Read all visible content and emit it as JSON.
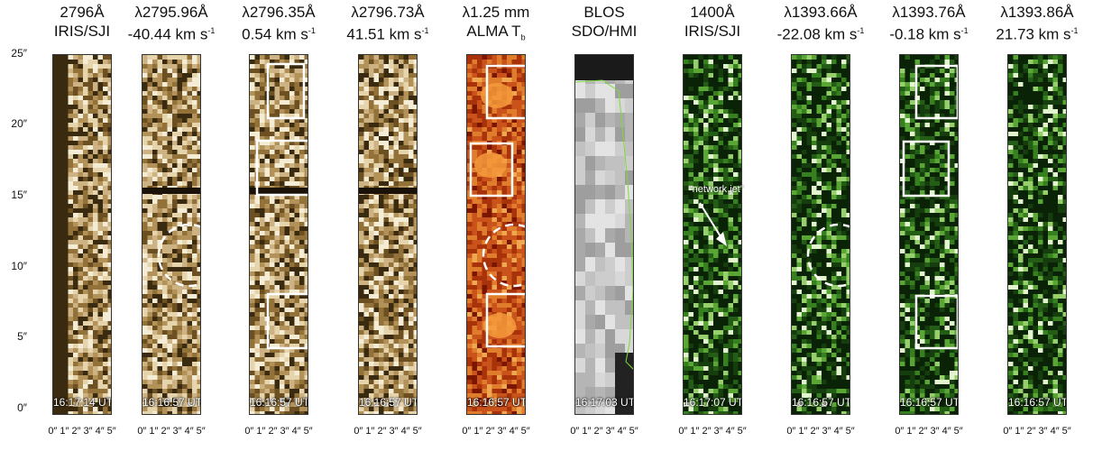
{
  "panels": [
    {
      "title1": "2796Å",
      "title2": "IRIS/SJI",
      "time": "16:17:14 UT",
      "palette": "brown"
    },
    {
      "title1": "λ2795.96Å",
      "title2": "-40.44 km s",
      "title2_sup": "-1",
      "time": "16:16:57 UT",
      "palette": "brown"
    },
    {
      "title1": "λ2796.35Å",
      "title2": "0.54 km s",
      "title2_sup": "-1",
      "time": "16:16:57 UT",
      "palette": "brown"
    },
    {
      "title1": "λ2796.73Å",
      "title2": "41.51 km s",
      "title2_sup": "-1",
      "time": "16:16:57 UT",
      "palette": "brown"
    },
    {
      "title1": "λ1.25 mm",
      "title2": "ALMA T",
      "title2_sub": "b",
      "time": "16:16:57 UT",
      "palette": "red"
    },
    {
      "title1": "BLOS",
      "title2": "SDO/HMI",
      "time": "16:17:03 UT",
      "palette": "gray"
    },
    {
      "title1": "1400Å",
      "title2": "IRIS/SJI",
      "time": "16:17:07 UT",
      "palette": "green"
    },
    {
      "title1": "λ1393.66Å",
      "title2": "-22.08 km s",
      "title2_sup": "-1",
      "time": "16:16:57 UT",
      "palette": "green"
    },
    {
      "title1": "λ1393.76Å",
      "title2": "-0.18 km s",
      "title2_sup": "-1",
      "time": "16:16:57 UT",
      "palette": "green"
    },
    {
      "title1": "λ1393.86Å",
      "title2": "21.73 km s",
      "title2_sup": "-1",
      "time": "16:16:57 UT",
      "palette": "green"
    }
  ],
  "y_axis": {
    "ticks": [
      "25″",
      "20″",
      "15″",
      "10″",
      "5″",
      "0″"
    ]
  },
  "x_axis": {
    "ticks": "0″ 1″ 2″ 3″ 4″ 5″"
  },
  "annotation": {
    "text": "“network jet”"
  },
  "colors": {
    "brown": "#8a6a2e",
    "red": "#9a1f05",
    "gray": "#b5b5b5",
    "green": "#1f5c12",
    "box": "#ffffff"
  }
}
